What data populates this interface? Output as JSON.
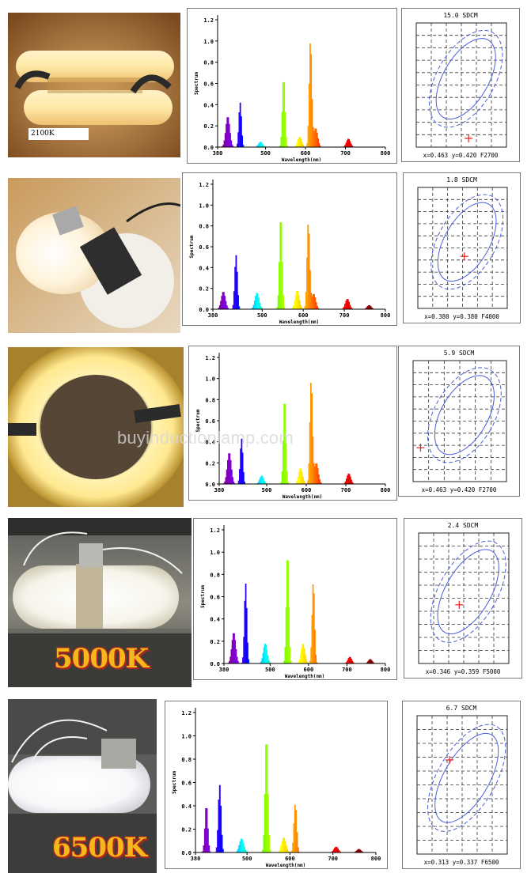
{
  "watermark": "buyinductionlamp.com",
  "rows": [
    {
      "id": "r1",
      "lamp_label": "2100K",
      "label_style": "small",
      "cie": {
        "sdcm_title": "15.0 SDCM",
        "readout": "x=0.463  y=0.420  F2700",
        "marker": [
          0.58,
          0.93
        ]
      }
    },
    {
      "id": "r2",
      "lamp_label": "",
      "label_style": "none",
      "cie": {
        "sdcm_title": "1.8 SDCM",
        "readout": "x=0.380  y=0.380  F4000",
        "marker": [
          0.52,
          0.57
        ]
      }
    },
    {
      "id": "r3",
      "lamp_label": "",
      "label_style": "none",
      "cie": {
        "sdcm_title": "5.9 SDCM",
        "readout": "x=0.463  y=0.420  F2700",
        "marker": [
          0.08,
          0.72
        ]
      }
    },
    {
      "id": "r4",
      "lamp_label": "5000K",
      "label_style": "big",
      "cie": {
        "sdcm_title": "2.4 SDCM",
        "readout": "x=0.346  y=0.359  F5000",
        "marker": [
          0.45,
          0.55
        ]
      }
    },
    {
      "id": "r5",
      "lamp_label": "6500K",
      "label_style": "big",
      "cie": {
        "sdcm_title": "6.7 SDCM",
        "readout": "x=0.313  y=0.337  F6500",
        "marker": [
          0.36,
          0.32
        ]
      }
    }
  ],
  "chart_data": [
    {
      "type": "area",
      "ylabel": "Spectrum",
      "xlabel": "Wavelength(nm)",
      "xlim": [
        380,
        800
      ],
      "ylim": [
        0,
        1.2
      ],
      "xticks": [
        "380",
        "500",
        "600",
        "700",
        "800"
      ],
      "yticks": [
        "0.0",
        "0.2",
        "0.4",
        "0.6",
        "0.8",
        "1.0",
        "1.2"
      ],
      "peaks": [
        [
          405,
          0.29
        ],
        [
          436,
          0.42
        ],
        [
          487,
          0.05
        ],
        [
          545,
          0.66
        ],
        [
          585,
          0.1
        ],
        [
          612,
          1.0
        ],
        [
          625,
          0.18
        ],
        [
          707,
          0.08
        ]
      ]
    },
    {
      "type": "area",
      "ylabel": "Spectrum",
      "xlabel": "Wavelength(nm)",
      "xlim": [
        380,
        800
      ],
      "ylim": [
        0,
        1.2
      ],
      "xticks": [
        "380",
        "500",
        "600",
        "700",
        "800"
      ],
      "yticks": [
        "0.0",
        "0.2",
        "0.4",
        "0.6",
        "0.8",
        "1.0",
        "1.2"
      ],
      "peaks": [
        [
          405,
          0.17
        ],
        [
          436,
          0.52
        ],
        [
          487,
          0.16
        ],
        [
          545,
          0.9
        ],
        [
          585,
          0.18
        ],
        [
          612,
          0.83
        ],
        [
          625,
          0.15
        ],
        [
          707,
          0.1
        ],
        [
          760,
          0.04
        ]
      ]
    },
    {
      "type": "area",
      "ylabel": "Spectrum",
      "xlabel": "Wavelength(nm)",
      "xlim": [
        380,
        800
      ],
      "ylim": [
        0,
        1.2
      ],
      "xticks": [
        "380",
        "500",
        "600",
        "700",
        "800"
      ],
      "yticks": [
        "0.0",
        "0.2",
        "0.4",
        "0.6",
        "0.8",
        "1.0",
        "1.2"
      ],
      "peaks": [
        [
          405,
          0.3
        ],
        [
          436,
          0.43
        ],
        [
          487,
          0.08
        ],
        [
          545,
          0.82
        ],
        [
          585,
          0.15
        ],
        [
          612,
          0.98
        ],
        [
          625,
          0.2
        ],
        [
          707,
          0.1
        ]
      ]
    },
    {
      "type": "area",
      "ylabel": "Spectrum",
      "xlabel": "Wavelength(nm)",
      "xlim": [
        380,
        800
      ],
      "ylim": [
        0,
        1.2
      ],
      "xticks": [
        "380",
        "500",
        "600",
        "700",
        "800"
      ],
      "yticks": [
        "0.0",
        "0.2",
        "0.4",
        "0.6",
        "0.8",
        "1.0",
        "1.2"
      ],
      "peaks": [
        [
          405,
          0.28
        ],
        [
          436,
          0.72
        ],
        [
          487,
          0.18
        ],
        [
          545,
          1.0
        ],
        [
          585,
          0.18
        ],
        [
          612,
          0.73
        ],
        [
          707,
          0.06
        ],
        [
          760,
          0.04
        ]
      ]
    },
    {
      "type": "area",
      "ylabel": "Spectrum",
      "xlabel": "Wavelength(nm)",
      "xlim": [
        380,
        800
      ],
      "ylim": [
        0,
        1.2
      ],
      "xticks": [
        "380",
        "500",
        "600",
        "700",
        "800"
      ],
      "yticks": [
        "0.0",
        "0.2",
        "0.4",
        "0.6",
        "0.8",
        "1.0",
        "1.2"
      ],
      "peaks": [
        [
          405,
          0.41
        ],
        [
          436,
          0.58
        ],
        [
          487,
          0.12
        ],
        [
          545,
          1.0
        ],
        [
          585,
          0.13
        ],
        [
          612,
          0.42
        ],
        [
          707,
          0.05
        ],
        [
          760,
          0.03
        ]
      ]
    }
  ]
}
